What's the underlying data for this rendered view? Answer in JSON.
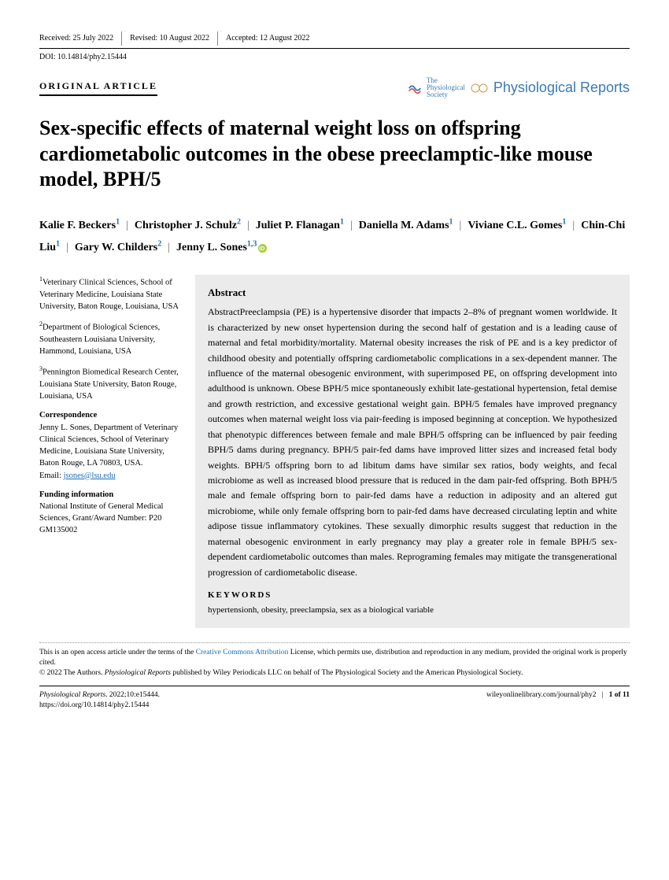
{
  "header": {
    "received": "Received: 25 July 2022",
    "revised": "Revised: 10 August 2022",
    "accepted": "Accepted: 12 August 2022",
    "doi": "DOI: 10.14814/phy2.15444"
  },
  "article_type": "ORIGINAL ARTICLE",
  "journal": {
    "logo1_line1": "The",
    "logo1_line2": "Physiological",
    "logo1_line3": "Society",
    "name": "Physiological Reports"
  },
  "title": "Sex-specific effects of maternal weight loss on offspring cardiometabolic outcomes in the obese preeclamptic-like mouse model, BPH/5",
  "authors": [
    {
      "name": "Kalie F. Beckers",
      "aff": "1"
    },
    {
      "name": "Christopher J. Schulz",
      "aff": "2"
    },
    {
      "name": "Juliet P. Flanagan",
      "aff": "1"
    },
    {
      "name": "Daniella M. Adams",
      "aff": "1"
    },
    {
      "name": "Viviane C.L. Gomes",
      "aff": "1"
    },
    {
      "name": "Chin-Chi Liu",
      "aff": "1"
    },
    {
      "name": "Gary W. Childers",
      "aff": "2"
    },
    {
      "name": "Jenny L. Sones",
      "aff": "1,3",
      "orcid": true
    }
  ],
  "affiliations": [
    {
      "num": "1",
      "text": "Veterinary Clinical Sciences, School of Veterinary Medicine, Louisiana State University, Baton Rouge, Louisiana, USA"
    },
    {
      "num": "2",
      "text": "Department of Biological Sciences, Southeastern Louisiana University, Hammond, Louisiana, USA"
    },
    {
      "num": "3",
      "text": "Pennington Biomedical Research Center, Louisiana State University, Baton Rouge, Louisiana, USA"
    }
  ],
  "correspondence": {
    "label": "Correspondence",
    "text": "Jenny L. Sones, Department of Veterinary Clinical Sciences, School of Veterinary Medicine, Louisiana State University, Baton Rouge, LA 70803, USA.",
    "email_label": "Email: ",
    "email": "jsones@lsu.edu"
  },
  "funding": {
    "label": "Funding information",
    "text": "National Institute of General Medical Sciences, Grant/Award Number: P20 GM135002"
  },
  "abstract": {
    "heading": "Abstract",
    "text": "AbstractPreeclampsia (PE) is a hypertensive disorder that impacts 2–8% of pregnant women worldwide. It is characterized by new onset hypertension during the second half of gestation and is a leading cause of maternal and fetal morbidity/mortality. Maternal obesity increases the risk of PE and is a key predictor of childhood obesity and potentially offspring cardiometabolic complications in a sex-dependent manner. The influence of the maternal obesogenic environment, with superimposed PE, on offspring development into adulthood is unknown. Obese BPH/5 mice spontaneously exhibit late-gestational hypertension, fetal demise and growth restriction, and excessive gestational weight gain. BPH/5 females have improved pregnancy outcomes when maternal weight loss via pair-feeding is imposed beginning at conception. We hypothesized that phenotypic differences between female and male BPH/5 offspring can be influenced by pair feeding BPH/5 dams during pregnancy. BPH/5 pair-fed dams have improved litter sizes and increased fetal body weights. BPH/5 offspring born to ad libitum dams have similar sex ratios, body weights, and fecal microbiome as well as increased blood pressure that is reduced in the dam pair-fed offspring. Both BPH/5 male and female offspring born to pair-fed dams have a reduction in adiposity and an altered gut microbiome, while only female offspring born to pair-fed dams have decreased circulating leptin and white adipose tissue inflammatory cytokines. These sexually dimorphic results suggest that reduction in the maternal obesogenic environment in early pregnancy may play a greater role in female BPH/5 sex-dependent cardiometabolic outcomes than males. Reprograming females may mitigate the transgenerational progression of cardiometabolic disease."
  },
  "keywords": {
    "label": "KEYWORDS",
    "text": "hypertensionh, obesity, preeclampsia, sex as a biological variable"
  },
  "license": {
    "line1a": "This is an open access article under the terms of the ",
    "line1_link": "Creative Commons Attribution",
    "line1b": " License, which permits use, distribution and reproduction in any medium, provided the original work is properly cited.",
    "line2a": "© 2022 The Authors. ",
    "line2_em": "Physiological Reports",
    "line2b": " published by Wiley Periodicals LLC on behalf of The Physiological Society and the American Physiological Society."
  },
  "footer": {
    "citation_em": "Physiological Reports",
    "citation_rest": ". 2022;10:e15444.",
    "doi_url": "https://doi.org/10.14814/phy2.15444",
    "journal_url": "wileyonlinelibrary.com/journal/phy2",
    "page": "1 of 11"
  }
}
